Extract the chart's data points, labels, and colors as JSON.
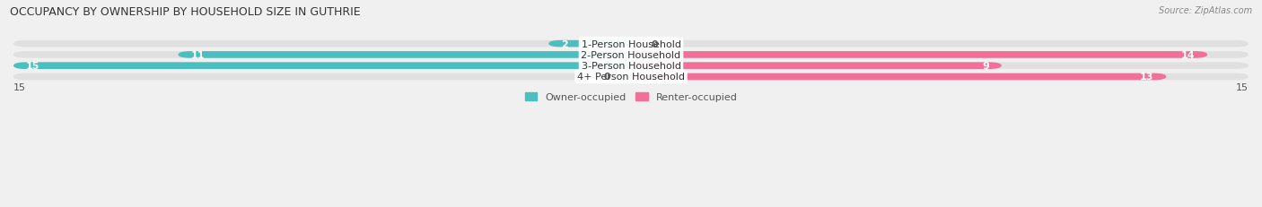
{
  "title": "OCCUPANCY BY OWNERSHIP BY HOUSEHOLD SIZE IN GUTHRIE",
  "source": "Source: ZipAtlas.com",
  "categories": [
    "1-Person Household",
    "2-Person Household",
    "3-Person Household",
    "4+ Person Household"
  ],
  "owner_values": [
    2,
    11,
    15,
    0
  ],
  "renter_values": [
    0,
    14,
    9,
    13
  ],
  "owner_color": "#4BBFBF",
  "renter_color": "#F07098",
  "owner_color_light": "#A8DEE0",
  "renter_color_light": "#F5AABE",
  "owner_label": "Owner-occupied",
  "renter_label": "Renter-occupied",
  "xlim_left": -15,
  "xlim_right": 15,
  "background_color": "#f0f0f0",
  "bar_bg_color": "#e0e0e0",
  "title_fontsize": 9,
  "label_fontsize": 8,
  "value_fontsize": 8,
  "bar_height": 0.62,
  "legend_fontsize": 8
}
